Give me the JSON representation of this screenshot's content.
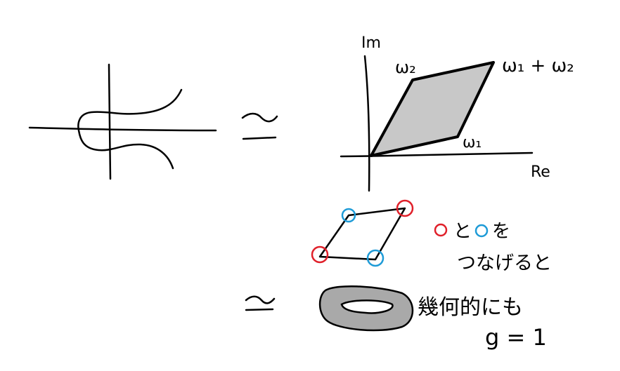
{
  "sketch": {
    "equiv_symbol": "≃",
    "lattice_plane": {
      "axis_im": "Im",
      "axis_re": "Re",
      "label_w1": "ω₁",
      "label_w2": "ω₂",
      "label_w1_plus_w2": "ω₁ + ω₂",
      "parallelogram_fill": "#c8c8c8"
    },
    "gluing_note": {
      "line1": "と",
      "line1_suffix": "を",
      "line2": "つなげると",
      "red_marker_color": "#e0202a",
      "blue_marker_color": "#1e9bd7"
    },
    "torus_note": {
      "line1": "幾何的にも",
      "line2": "g = 1",
      "torus_fill": "#a9a9a9"
    }
  }
}
